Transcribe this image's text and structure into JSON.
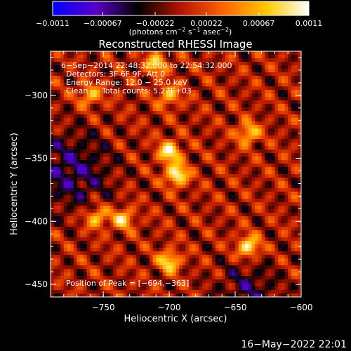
{
  "chart_data": {
    "type": "heatmap",
    "title": "Reconstructed RHESSI Image",
    "xlabel": "Heliocentric X (arcsec)",
    "ylabel": "Heliocentric Y (arcsec)",
    "xlim": [
      -790,
      -600
    ],
    "ylim": [
      -460,
      -265
    ],
    "x_ticks": [
      -750,
      -700,
      -650,
      -600
    ],
    "x_tick_labels": [
      "−750",
      "−700",
      "−650",
      "−600"
    ],
    "y_ticks": [
      -300,
      -350,
      -400,
      -450
    ],
    "y_tick_labels": [
      "−300",
      "−350",
      "−400",
      "−450"
    ],
    "colorbar": {
      "min": -0.0011,
      "max": 0.0011,
      "ticks": [
        -0.0011,
        -0.00067,
        -0.00022,
        0.00022,
        0.00067,
        0.0011
      ],
      "tick_labels": [
        "−0.0011",
        "−0.00067",
        "−0.00022",
        "0.00022",
        "0.00067",
        "0.0011"
      ],
      "unit_parts": [
        "(photons cm",
        "−2",
        " s",
        "−1",
        " asec",
        "−2",
        ")"
      ],
      "stops": [
        "#0000ff",
        "#5a00c8",
        "#000000",
        "#b41400",
        "#ff6400",
        "#ffc800",
        "#ffffff"
      ]
    },
    "annotations": {
      "time": "6−Sep−2014 22:48:32.000 to 22:54:32.000",
      "detectors": "Detectors: 3F 6F 9F, Att 0",
      "energy": "Energy Range: 12.0 − 25.0 keV",
      "clean_label": "Clean",
      "counts": "Total counts: 5.27E+03",
      "peak": "Position of Peak = [−694,−363]"
    },
    "bright_sources": [
      {
        "x": -694,
        "y": -363,
        "value": 0.0011
      },
      {
        "x": -700,
        "y": -345,
        "value": 0.001
      },
      {
        "x": -640,
        "y": -420,
        "value": 0.001
      },
      {
        "x": -700,
        "y": -432,
        "value": 0.0009
      },
      {
        "x": -755,
        "y": -397,
        "value": 0.0008
      },
      {
        "x": -735,
        "y": -398,
        "value": 0.0008
      },
      {
        "x": -640,
        "y": -330,
        "value": 0.0008
      },
      {
        "x": -710,
        "y": -275,
        "value": 0.0008
      },
      {
        "x": -700,
        "y": -300,
        "value": 0.0007
      },
      {
        "x": -760,
        "y": -300,
        "value": 0.0007
      }
    ]
  },
  "footer": {
    "timestamp": "16−May−2022 22:01"
  }
}
